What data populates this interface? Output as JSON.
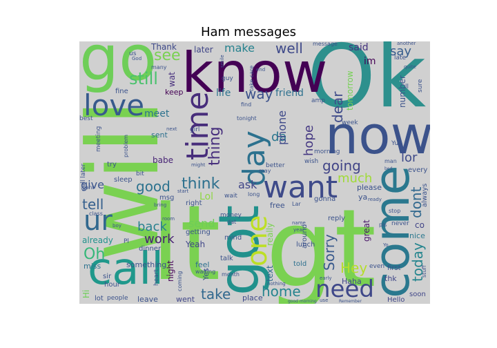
{
  "title": "Ham messages",
  "background_color": "#d0d0d0",
  "colormap": "viridis",
  "words": [
    {
      "text": "Ok",
      "color": "#2d908d"
    },
    {
      "text": "will",
      "color": "#7ad151"
    },
    {
      "text": "lt",
      "color": "#7ad151"
    },
    {
      "text": "gt",
      "color": "#7ad151"
    },
    {
      "text": "go",
      "color": "#6ece58"
    },
    {
      "text": "know",
      "color": "#440154"
    },
    {
      "text": "now",
      "color": "#3b528b"
    },
    {
      "text": "got",
      "color": "#21918c"
    },
    {
      "text": "call",
      "color": "#1f988b"
    },
    {
      "text": "come",
      "color": "#2a788e"
    },
    {
      "text": "want",
      "color": "#3e4a89"
    },
    {
      "text": "love",
      "color": "#375a8c"
    },
    {
      "text": "time",
      "color": "#472d7b"
    },
    {
      "text": "day",
      "color": "#2c718e"
    },
    {
      "text": "one",
      "color": "#bddf26"
    },
    {
      "text": "need",
      "color": "#3f4889"
    },
    {
      "text": "ur",
      "color": "#31688e"
    },
    {
      "text": "good",
      "color": "#2c728e"
    },
    {
      "text": "still",
      "color": "#4ac16d"
    },
    {
      "text": "see",
      "color": "#7ad151"
    },
    {
      "text": "make",
      "color": "#26828e"
    },
    {
      "text": "well",
      "color": "#3e4989"
    },
    {
      "text": "say",
      "color": "#365c8d"
    },
    {
      "text": "think",
      "color": "#2d708e"
    },
    {
      "text": "tell",
      "color": "#355f8d"
    },
    {
      "text": "give",
      "color": "#3a548c"
    },
    {
      "text": "going",
      "color": "#414487"
    },
    {
      "text": "much",
      "color": "#a0da39"
    },
    {
      "text": "lor",
      "color": "#3e4a89"
    },
    {
      "text": "dont",
      "color": "#31688e"
    },
    {
      "text": "today",
      "color": "#25858e"
    },
    {
      "text": "Sorry",
      "color": "#38598c"
    },
    {
      "text": "home",
      "color": "#25848e"
    },
    {
      "text": "Hey",
      "color": "#b5de2b"
    },
    {
      "text": "way",
      "color": "#3b518b"
    },
    {
      "text": "thing",
      "color": "#472f7d"
    },
    {
      "text": "back",
      "color": "#27808e"
    },
    {
      "text": "work",
      "color": "#482173"
    },
    {
      "text": "Oh",
      "color": "#35b779"
    },
    {
      "text": "take",
      "color": "#31688e"
    },
    {
      "text": "send",
      "color": "#6ece58"
    },
    {
      "text": "dear",
      "color": "#3e4a89"
    },
    {
      "text": "hope",
      "color": "#453882"
    },
    {
      "text": "da",
      "color": "#2a768e"
    },
    {
      "text": "phone",
      "color": "#3e4989"
    },
    {
      "text": "ask",
      "color": "#404688"
    },
    {
      "text": "Lol",
      "color": "#8fd744"
    },
    {
      "text": "meet",
      "color": "#2c728e"
    },
    {
      "text": "life",
      "color": "#2c738e"
    },
    {
      "text": "friend",
      "color": "#2d708e"
    },
    {
      "text": "Thank",
      "color": "#3e4989"
    },
    {
      "text": "later",
      "color": "#404688"
    },
    {
      "text": "said",
      "color": "#46337f"
    },
    {
      "text": "im",
      "color": "#440154"
    },
    {
      "text": "tomorrow",
      "color": "#75d054"
    },
    {
      "text": "number",
      "color": "#3b528b"
    },
    {
      "text": "great",
      "color": "#481668"
    },
    {
      "text": "already",
      "color": "#21918c"
    },
    {
      "text": "Yeah",
      "color": "#404688"
    },
    {
      "text": "night",
      "color": "#440154"
    },
    {
      "text": "text",
      "color": "#31688e"
    },
    {
      "text": "really",
      "color": "#7ad151"
    },
    {
      "text": "something",
      "color": "#3b528b"
    },
    {
      "text": "miss",
      "color": "#2c728e"
    },
    {
      "text": "babe",
      "color": "#482475"
    },
    {
      "text": "sent",
      "color": "#2d708e"
    },
    {
      "text": "keep",
      "color": "#440154"
    },
    {
      "text": "wat",
      "color": "#472f7d"
    },
    {
      "text": "Yes",
      "color": "#3b528b"
    },
    {
      "text": "feel",
      "color": "#2d708e"
    },
    {
      "text": "place",
      "color": "#3e4a89"
    },
    {
      "text": "leave",
      "color": "#3b528b"
    },
    {
      "text": "went",
      "color": "#404688"
    },
    {
      "text": "Hello",
      "color": "#404688"
    },
    {
      "text": "soon",
      "color": "#404688"
    },
    {
      "text": "nice",
      "color": "#2a788e"
    },
    {
      "text": "co",
      "color": "#414487"
    },
    {
      "text": "Haha",
      "color": "#404688"
    },
    {
      "text": "thk",
      "color": "#404688"
    },
    {
      "text": "free",
      "color": "#3b528b"
    },
    {
      "text": "told",
      "color": "#2d708e"
    },
    {
      "text": "lunch",
      "color": "#3b528b"
    },
    {
      "text": "please",
      "color": "#3b528b"
    },
    {
      "text": "ya",
      "color": "#3b528b"
    },
    {
      "text": "always",
      "color": "#3b528b"
    },
    {
      "text": "every",
      "color": "#3b528b"
    },
    {
      "text": "gonna",
      "color": "#3b528b"
    },
    {
      "text": "Hi",
      "color": "#6ece58"
    },
    {
      "text": "lot",
      "color": "#3b528b"
    },
    {
      "text": "hour",
      "color": "#3b528b"
    },
    {
      "text": "dinner",
      "color": "#3b528b"
    },
    {
      "text": "msg",
      "color": "#3b528b"
    },
    {
      "text": "right",
      "color": "#3b528b"
    },
    {
      "text": "getting",
      "color": "#3b528b"
    },
    {
      "text": "talk",
      "color": "#3b528b"
    },
    {
      "text": "mind",
      "color": "#3b528b"
    },
    {
      "text": "money",
      "color": "#3b528b"
    },
    {
      "text": "first",
      "color": "#3b528b"
    },
    {
      "text": "even",
      "color": "#3b528b"
    },
    {
      "text": "never",
      "color": "#3b528b"
    },
    {
      "text": "around",
      "color": "#3b528b"
    },
    {
      "text": "reply",
      "color": "#3b528b"
    },
    {
      "text": "fine",
      "color": "#3b528b"
    },
    {
      "text": "best",
      "color": "#3b528b"
    },
    {
      "text": "sleep",
      "color": "#3b528b"
    },
    {
      "text": "try",
      "color": "#3b528b"
    },
    {
      "text": "bit",
      "color": "#3b528b"
    },
    {
      "text": "wish",
      "color": "#3b528b"
    },
    {
      "text": "better",
      "color": "#3b528b"
    },
    {
      "text": "morning",
      "color": "#3b528b"
    },
    {
      "text": "week",
      "color": "#3b528b"
    },
    {
      "text": "Yup",
      "color": "#3b528b"
    },
    {
      "text": "may",
      "color": "#3b528b"
    },
    {
      "text": "many",
      "color": "#3b528b"
    },
    {
      "text": "us",
      "color": "#3b528b"
    },
    {
      "text": "message",
      "color": "#3b528b"
    },
    {
      "text": "find",
      "color": "#3b528b"
    },
    {
      "text": "tonight",
      "color": "#3b528b"
    },
    {
      "text": "ll",
      "color": "#3b528b"
    },
    {
      "text": "sure",
      "color": "#3b528b"
    },
    {
      "text": "late",
      "color": "#3b528b"
    },
    {
      "text": "wait",
      "color": "#3b528b"
    },
    {
      "text": "long",
      "color": "#3b528b"
    },
    {
      "text": "stop",
      "color": "#3b528b"
    },
    {
      "text": "ready",
      "color": "#3b528b"
    },
    {
      "text": "God",
      "color": "#3b528b"
    },
    {
      "text": "girl",
      "color": "#3b528b"
    },
    {
      "text": "pls",
      "color": "#3b528b"
    },
    {
      "text": "amp",
      "color": "#3b528b"
    },
    {
      "text": "call later",
      "color": "#3b528b"
    },
    {
      "text": "meeting",
      "color": "#3b528b"
    },
    {
      "text": "problem",
      "color": "#3b528b"
    },
    {
      "text": "heart",
      "color": "#3b528b"
    },
    {
      "text": "sir",
      "color": "#3b528b"
    },
    {
      "text": "people",
      "color": "#3b528b"
    },
    {
      "text": "month",
      "color": "#3b528b"
    },
    {
      "text": "dat",
      "color": "#3b528b"
    },
    {
      "text": "name",
      "color": "#3b528b"
    },
    {
      "text": "nothing",
      "color": "#3b528b"
    },
    {
      "text": "early",
      "color": "#3b528b"
    },
    {
      "text": "guy",
      "color": "#3b528b"
    },
    {
      "text": "end",
      "color": "#3b528b"
    },
    {
      "text": "another",
      "color": "#3b528b"
    },
    {
      "text": "quite",
      "color": "#3b528b"
    },
    {
      "text": "next",
      "color": "#3b528b"
    },
    {
      "text": "smile",
      "color": "#3b528b"
    },
    {
      "text": "take care",
      "color": "#3b528b"
    },
    {
      "text": "room",
      "color": "#3b528b"
    },
    {
      "text": "start",
      "color": "#3b528b"
    },
    {
      "text": "class",
      "color": "#3b528b"
    },
    {
      "text": "boy",
      "color": "#3b528b"
    },
    {
      "text": "might",
      "color": "#3b528b"
    },
    {
      "text": "coming",
      "color": "#3b528b"
    },
    {
      "text": "waiting",
      "color": "#3b528b"
    },
    {
      "text": "stuff",
      "color": "#3b528b"
    },
    {
      "text": "year",
      "color": "#3b528b"
    },
    {
      "text": "use",
      "color": "#3b528b"
    },
    {
      "text": "good morning",
      "color": "#3b528b"
    },
    {
      "text": "Remember",
      "color": "#3b528b"
    },
    {
      "text": "bed",
      "color": "#3b528b"
    },
    {
      "text": "man",
      "color": "#3b528b"
    },
    {
      "text": "Yo",
      "color": "#3b528b"
    },
    {
      "text": "Pl",
      "color": "#3b528b"
    },
    {
      "text": "cant",
      "color": "#3b528b"
    },
    {
      "text": "Lar",
      "color": "#3b528b"
    },
    {
      "text": "bring",
      "color": "#3b528b"
    }
  ]
}
